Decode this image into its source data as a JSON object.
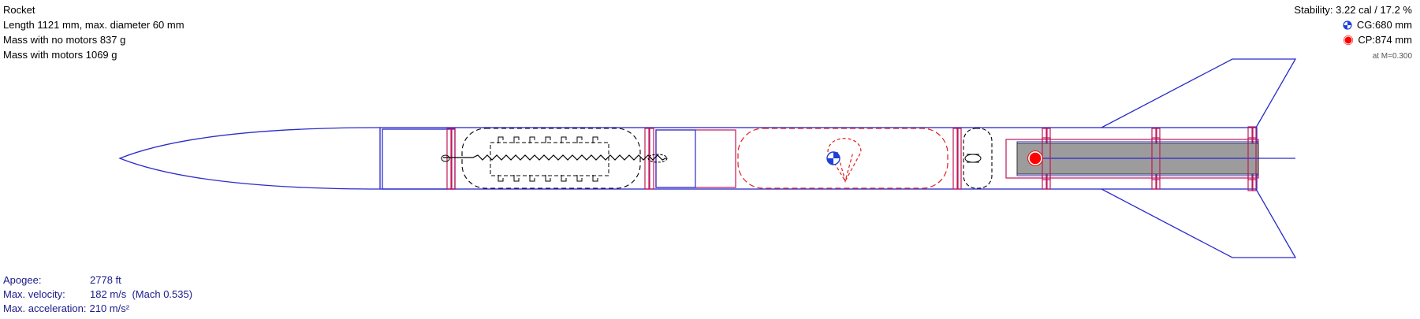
{
  "rocket": {
    "name": "Rocket",
    "length_line": "Length 1121 mm, max. diameter 60 mm",
    "mass_no_motors_line": "Mass with no motors 837 g",
    "mass_with_motors_line": "Mass with motors 1069 g"
  },
  "stability": {
    "line": "Stability: 3.22 cal / 17.2 %",
    "cg_label": "CG:680 mm",
    "cp_label": "CP:874 mm",
    "mach_note": "at M=0.300"
  },
  "flight": {
    "apogee_label": "Apogee:",
    "apogee_value": "2778 ft",
    "velocity_label": "Max. velocity:",
    "velocity_value": "182 m/s  (Mach 0.535)",
    "accel_label": "Max. acceleration:",
    "accel_value": "210 m/s²"
  },
  "colors": {
    "body_outline": "#2a2acc",
    "inner_component": "#c0185a",
    "parachute": "#e02020",
    "shock_cord": "#000000",
    "motor_fill": "#9c9c9c",
    "cp_marker": "#ff0000",
    "cg_marker": "#1f3fd8"
  }
}
